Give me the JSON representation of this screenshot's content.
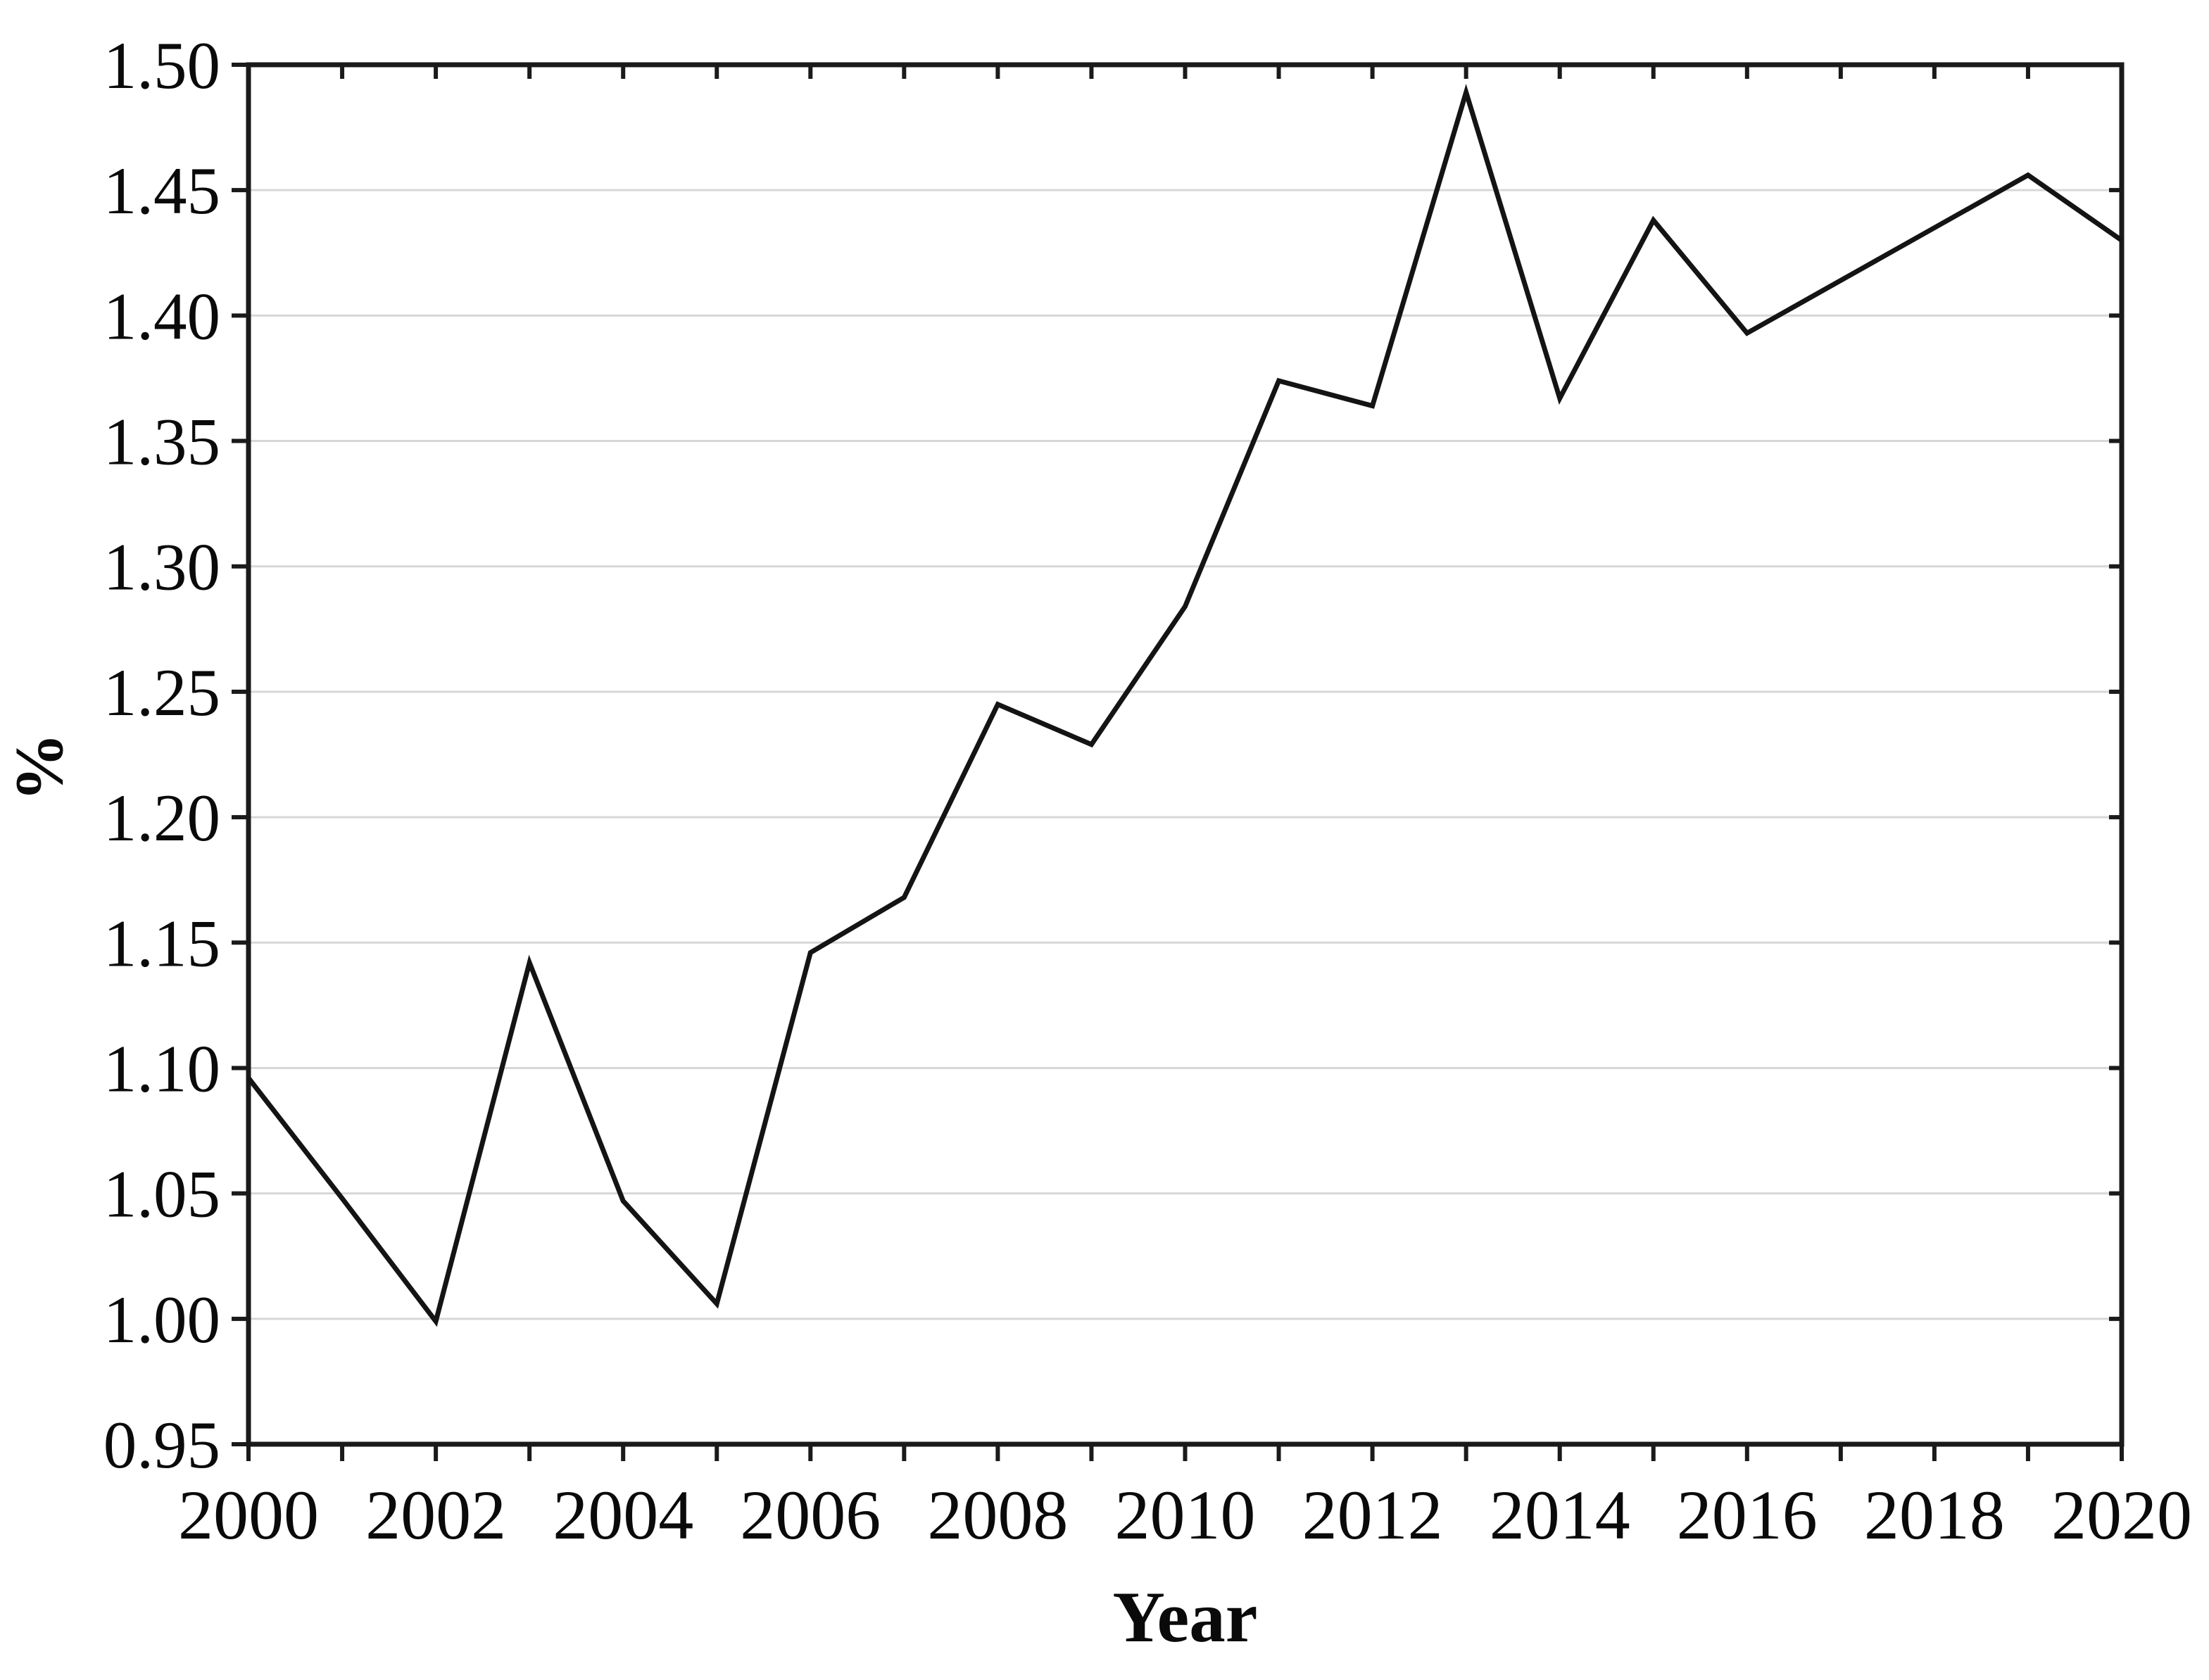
{
  "chart_data": {
    "type": "line",
    "title": "",
    "xlabel": "Year",
    "ylabel": "%",
    "x": [
      2000,
      2001,
      2002,
      2003,
      2004,
      2005,
      2006,
      2007,
      2008,
      2009,
      2010,
      2011,
      2012,
      2013,
      2014,
      2015,
      2016,
      2017,
      2018,
      2019,
      2020
    ],
    "values": [
      1.096,
      1.048,
      0.999,
      1.142,
      1.047,
      1.006,
      1.146,
      1.168,
      1.245,
      1.229,
      1.284,
      1.374,
      1.364,
      1.489,
      1.367,
      1.438,
      1.393,
      1.414,
      1.435,
      1.456,
      1.43
    ],
    "xlim": [
      2000,
      2020
    ],
    "ylim": [
      0.95,
      1.5
    ],
    "yticks": [
      0.95,
      1.0,
      1.05,
      1.1,
      1.15,
      1.2,
      1.25,
      1.3,
      1.35,
      1.4,
      1.45,
      1.5
    ],
    "ytick_labels": [
      "0.95",
      "1.00",
      "1.05",
      "1.10",
      "1.15",
      "1.20",
      "1.25",
      "1.30",
      "1.35",
      "1.40",
      "1.45",
      "1.50"
    ],
    "xtick_labels": [
      "2000",
      "2002",
      "2004",
      "2006",
      "2008",
      "2010",
      "2012",
      "2014",
      "2016",
      "2018",
      "2020"
    ],
    "minor_x_ticks_every_year": true,
    "grid": "horizontal",
    "legend": "none",
    "markers": "none",
    "colors": {
      "line": "#141414",
      "grid": "#d7d7d7",
      "axis": "#1a1a1a",
      "text": "#0a0a0a",
      "background": "#ffffff"
    }
  }
}
